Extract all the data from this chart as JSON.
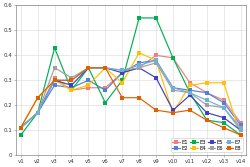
{
  "x_labels": [
    "v1",
    "v2",
    "v3",
    "v4",
    "v5",
    "v6",
    "v7",
    "v8",
    "v9",
    "v10",
    "v11",
    "v12",
    "v13",
    "v14"
  ],
  "series": {
    "E1": [
      0.11,
      0.17,
      0.31,
      0.26,
      0.27,
      0.27,
      0.33,
      0.35,
      0.4,
      0.39,
      0.29,
      0.25,
      0.22,
      0.13
    ],
    "E2": [
      0.11,
      0.17,
      0.28,
      0.27,
      0.3,
      0.26,
      0.33,
      0.37,
      0.38,
      0.27,
      0.26,
      0.25,
      0.21,
      0.12
    ],
    "E3": [
      0.08,
      0.17,
      0.43,
      0.26,
      0.35,
      0.21,
      0.3,
      0.55,
      0.55,
      0.39,
      0.25,
      0.14,
      0.13,
      0.08
    ],
    "E4": [
      0.11,
      0.23,
      0.3,
      0.26,
      0.28,
      0.35,
      0.29,
      0.41,
      0.38,
      0.17,
      0.28,
      0.29,
      0.29,
      0.08
    ],
    "E5": [
      0.11,
      0.17,
      0.3,
      0.28,
      0.35,
      0.35,
      0.33,
      0.35,
      0.31,
      0.18,
      0.24,
      0.17,
      0.15,
      0.1
    ],
    "E6": [
      0.11,
      0.17,
      0.35,
      0.31,
      0.35,
      0.35,
      0.34,
      0.35,
      0.37,
      0.26,
      0.25,
      0.2,
      0.19,
      0.11
    ],
    "E7": [
      0.11,
      0.17,
      0.3,
      0.3,
      0.35,
      0.35,
      0.34,
      0.36,
      0.38,
      0.27,
      0.25,
      0.22,
      0.19,
      0.1
    ],
    "E8": [
      0.11,
      0.23,
      0.3,
      0.3,
      0.35,
      0.35,
      0.23,
      0.23,
      0.18,
      0.17,
      0.18,
      0.14,
      0.11,
      0.08
    ]
  },
  "colors": {
    "E1": "#f08080",
    "E2": "#4f81d9",
    "E3": "#00b050",
    "E4": "#ffc000",
    "E5": "#4040c0",
    "E6": "#a0a0a0",
    "E7": "#70b0d8",
    "E8": "#e06000"
  },
  "ylim": [
    0.0,
    0.6
  ],
  "yticks": [
    0.0,
    0.1,
    0.2,
    0.3,
    0.4,
    0.5,
    0.6
  ],
  "background_color": "#ffffff",
  "grid_color": "#d8d8d8"
}
